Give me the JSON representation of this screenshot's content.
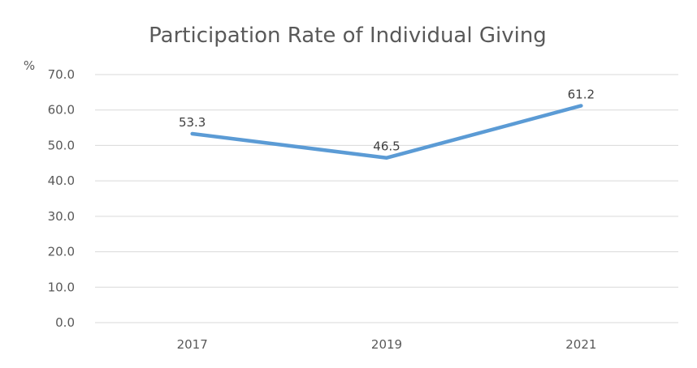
{
  "chart_data": {
    "type": "line",
    "title": "Participation Rate of Individual Giving",
    "ylabel": "%",
    "xlabel": "",
    "categories": [
      "2017",
      "2019",
      "2021"
    ],
    "series": [
      {
        "values": [
          53.3,
          46.5,
          61.2
        ],
        "color": "#5b9bd5",
        "data_labels": [
          "53.3",
          "46.5",
          "61.2"
        ]
      }
    ],
    "ylim": [
      0,
      70
    ],
    "yticks": [
      "0.0",
      "10.0",
      "20.0",
      "30.0",
      "40.0",
      "50.0",
      "60.0",
      "70.0"
    ],
    "grid": true,
    "legend": "none"
  }
}
